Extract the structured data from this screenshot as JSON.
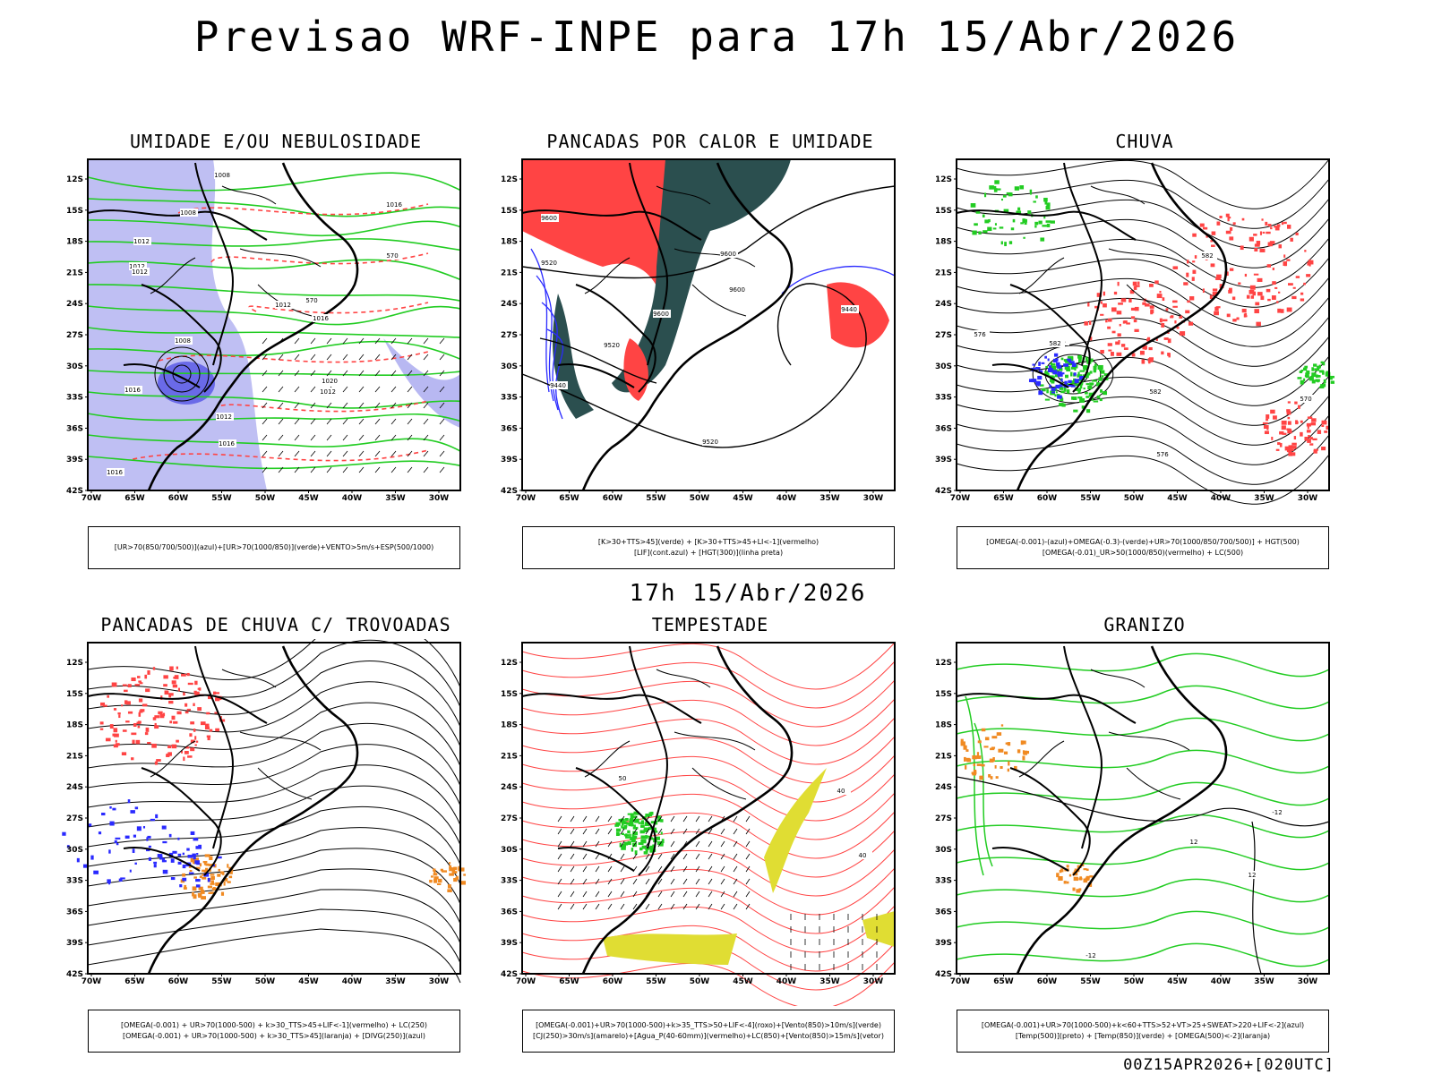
{
  "title": "Previsao WRF-INPE  para 17h 15/Abr/2026",
  "subtitle": "17h 15/Abr/2026",
  "footer": "00Z15APR2026+[020UTC]",
  "colors": {
    "light_blue": "#b8b8f2",
    "blue": "#6a6ae8",
    "green": "#22cc22",
    "red": "#ff4444",
    "dark_teal": "#2b4f4f",
    "yellow": "#e0dd33",
    "orange": "#f08a22",
    "line_blue": "#2a2aff"
  },
  "chart_data": [
    {
      "type": "map",
      "title": "UMIDADE E/OU NEBULOSIDADE",
      "legend": [
        "[UR>70(850/700/500)](azul)+[UR>70(1000/850)](verde)+VENTO>5m/s+ESP(500/1000)"
      ],
      "lat_ticks": [
        "12S",
        "15S",
        "18S",
        "21S",
        "24S",
        "27S",
        "30S",
        "33S",
        "36S",
        "39S",
        "42S"
      ],
      "lon_ticks": [
        "70W",
        "65W",
        "60W",
        "55W",
        "50W",
        "45W",
        "40W",
        "35W",
        "30W"
      ],
      "contour_labels": [
        "1008",
        "1008",
        "1012",
        "1012",
        "1012",
        "1012",
        "1016",
        "1012",
        "1008",
        "1016",
        "1012",
        "1016",
        "1016",
        "1020",
        "1016",
        "570",
        "570"
      ]
    },
    {
      "type": "map",
      "title": "PANCADAS POR CALOR E UMIDADE",
      "legend": [
        "[K>30+TTS>45](verde) + [K>30+TTS>45+LI<-1](vermelho)",
        "[LIF](cont.azul) + [HGT(300)](linha preta)"
      ],
      "lat_ticks": [
        "12S",
        "15S",
        "18S",
        "21S",
        "24S",
        "27S",
        "30S",
        "33S",
        "36S",
        "39S",
        "42S"
      ],
      "lon_ticks": [
        "70W",
        "65W",
        "60W",
        "55W",
        "50W",
        "45W",
        "40W",
        "35W",
        "30W"
      ],
      "contour_labels": [
        "9600",
        "9520",
        "9600",
        "9600",
        "9600",
        "9520",
        "9440",
        "9440",
        "9520"
      ]
    },
    {
      "type": "map",
      "title": "CHUVA",
      "legend": [
        "[OMEGA(-0.001)-(azul)+OMEGA(-0.3)-(verde)+UR>70(1000/850/700/500)] + HGT(500)",
        "[OMEGA(-0.01)_UR>50(1000/850)(vermelho) + LC(500)"
      ],
      "lat_ticks": [
        "12S",
        "15S",
        "18S",
        "21S",
        "24S",
        "27S",
        "30S",
        "33S",
        "36S",
        "39S",
        "42S"
      ],
      "lon_ticks": [
        "70W",
        "65W",
        "60W",
        "55W",
        "50W",
        "45W",
        "40W",
        "35W",
        "30W"
      ],
      "contour_labels": [
        "582",
        "582",
        "576",
        "576",
        "582",
        "576",
        "570"
      ]
    },
    {
      "type": "map",
      "title": "PANCADAS DE CHUVA C/ TROVOADAS",
      "legend": [
        "[OMEGA(-0.001) + UR>70(1000-500) + k>30_TTS>45+LIF<-1](vermelho) + LC(250)",
        "[OMEGA(-0.001) + UR>70(1000-500) + k>30_TTS>45](laranja) + [DIVG(250)](azul)"
      ],
      "lat_ticks": [
        "12S",
        "15S",
        "18S",
        "21S",
        "24S",
        "27S",
        "30S",
        "33S",
        "36S",
        "39S",
        "42S"
      ],
      "lon_ticks": [
        "70W",
        "65W",
        "60W",
        "55W",
        "50W",
        "45W",
        "40W",
        "35W",
        "30W"
      ],
      "contour_labels": []
    },
    {
      "type": "map",
      "title": "TEMPESTADE",
      "legend": [
        "[OMEGA(-0.001)+UR>70(1000-500)+k>35_TTS>50+LIF<-4](roxo)+[Vento(850)>10m/s](verde)",
        "[CJ(250)>30m/s](amarelo)+[Agua_P(40-60mm)](vermelho)+LC(850)+[Vento(850)>15m/s](vetor)"
      ],
      "lat_ticks": [
        "12S",
        "15S",
        "18S",
        "21S",
        "24S",
        "27S",
        "30S",
        "33S",
        "36S",
        "39S",
        "42S"
      ],
      "lon_ticks": [
        "70W",
        "65W",
        "60W",
        "55W",
        "50W",
        "45W",
        "40W",
        "35W",
        "30W"
      ],
      "contour_labels": [
        "50",
        "40",
        "40"
      ]
    },
    {
      "type": "map",
      "title": "GRANIZO",
      "legend": [
        "[OMEGA(-0.001)+UR>70(1000-500)+k<60+TTS>52+VT>25+SWEAT>220+LIF<-2](azul)",
        "[Temp(500)](preto) + [Temp(850)](verde) + [OMEGA(500)<-2](laranja)"
      ],
      "lat_ticks": [
        "12S",
        "15S",
        "18S",
        "21S",
        "24S",
        "27S",
        "30S",
        "33S",
        "36S",
        "39S",
        "42S"
      ],
      "lon_ticks": [
        "70W",
        "65W",
        "60W",
        "55W",
        "50W",
        "45W",
        "40W",
        "35W",
        "30W"
      ],
      "contour_labels": [
        "-12",
        "12",
        "12",
        "-12"
      ]
    }
  ]
}
